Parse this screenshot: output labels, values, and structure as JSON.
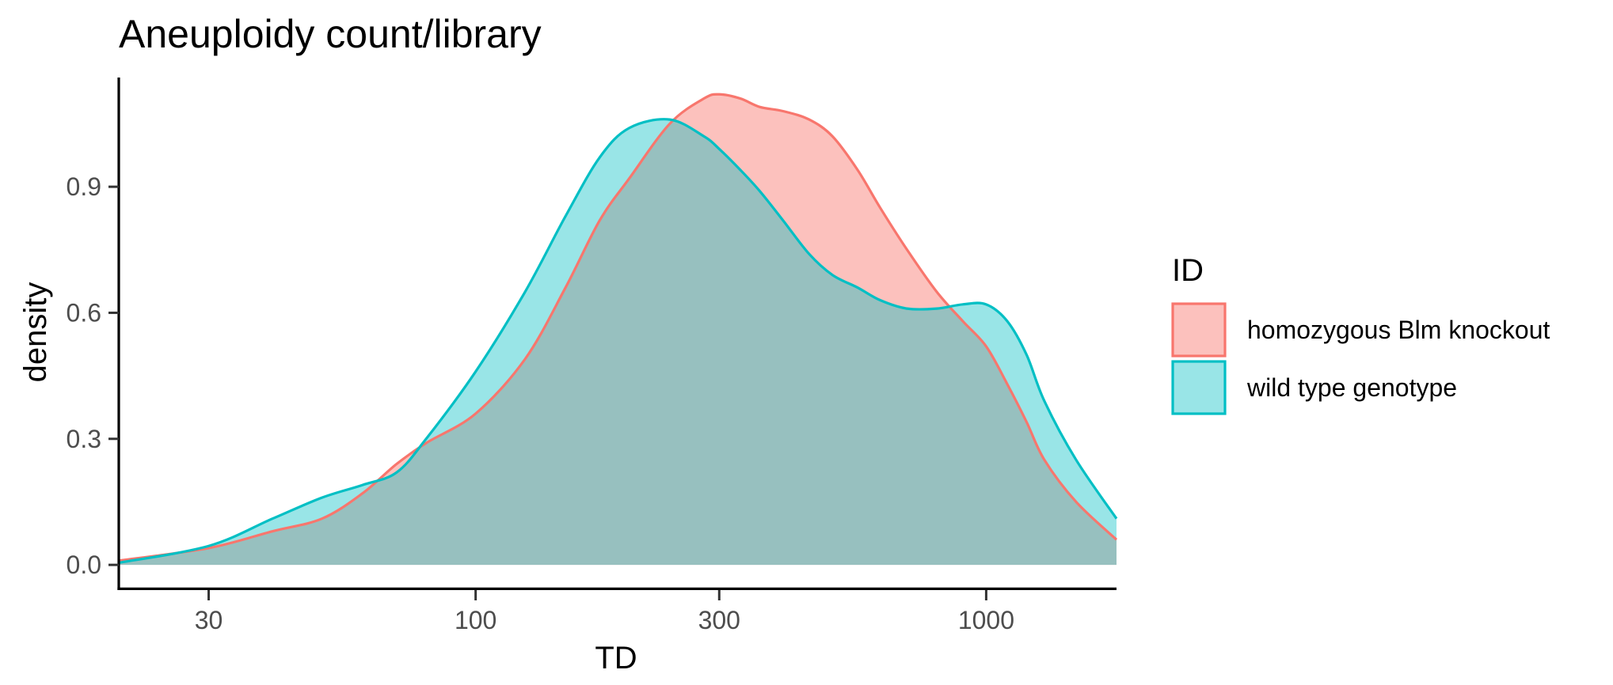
{
  "chart_data": {
    "type": "area",
    "subtype": "density",
    "title": "Aneuploidy count/library",
    "xlabel": "TD",
    "ylabel": "density",
    "x_scale": "log10",
    "xlim": [
      20,
      1800
    ],
    "ylim": [
      -0.06,
      1.16
    ],
    "x_ticks": [
      30,
      100,
      300,
      1000
    ],
    "x_tick_labels": [
      "30",
      "100",
      "300",
      "1000"
    ],
    "y_ticks": [
      0.0,
      0.3,
      0.6,
      0.9
    ],
    "y_tick_labels": [
      "0.0",
      "0.3",
      "0.6",
      "0.9"
    ],
    "grid": false,
    "legend": {
      "title": "ID",
      "position": "right"
    },
    "series": [
      {
        "name": "homozygous Blm knockout",
        "line_color": "#F8766D",
        "fill_color": "#F8766D",
        "fill_opacity": 0.45,
        "x": [
          20,
          30,
          40,
          50,
          60,
          70,
          80,
          100,
          125,
          150,
          175,
          200,
          240,
          280,
          300,
          330,
          360,
          400,
          450,
          500,
          560,
          620,
          700,
          800,
          900,
          1000,
          1100,
          1200,
          1300,
          1500,
          1800
        ],
        "y": [
          0.01,
          0.04,
          0.08,
          0.11,
          0.17,
          0.24,
          0.29,
          0.36,
          0.49,
          0.66,
          0.82,
          0.92,
          1.05,
          1.11,
          1.12,
          1.11,
          1.09,
          1.08,
          1.06,
          1.02,
          0.94,
          0.85,
          0.75,
          0.65,
          0.58,
          0.52,
          0.43,
          0.34,
          0.25,
          0.15,
          0.06
        ]
      },
      {
        "name": "wild type genotype",
        "line_color": "#00BFC4",
        "fill_color": "#00BFC4",
        "fill_opacity": 0.4,
        "x": [
          20,
          30,
          40,
          50,
          60,
          70,
          80,
          100,
          125,
          150,
          175,
          200,
          240,
          280,
          300,
          330,
          360,
          400,
          450,
          500,
          560,
          620,
          700,
          800,
          900,
          1000,
          1100,
          1200,
          1300,
          1500,
          1800
        ],
        "y": [
          0.005,
          0.045,
          0.11,
          0.16,
          0.19,
          0.22,
          0.3,
          0.46,
          0.65,
          0.83,
          0.97,
          1.04,
          1.06,
          1.02,
          0.99,
          0.94,
          0.89,
          0.82,
          0.74,
          0.69,
          0.66,
          0.63,
          0.61,
          0.61,
          0.62,
          0.62,
          0.58,
          0.5,
          0.39,
          0.25,
          0.11
        ]
      }
    ]
  }
}
